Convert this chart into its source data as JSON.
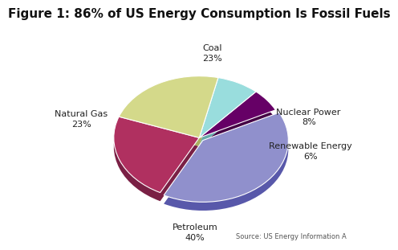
{
  "title": "Figure 1: 86% of US Energy Consumption Is Fossil Fuels",
  "labels": [
    "Natural Gas",
    "Petroleum",
    "Renewable Energy",
    "Nuclear Power",
    "Coal"
  ],
  "values": [
    23,
    40,
    6,
    8,
    23
  ],
  "colors": [
    "#b03060",
    "#9090cc",
    "#660066",
    "#99dddd",
    "#d4d98a"
  ],
  "shadow_colors": [
    "#7a2045",
    "#5858aa",
    "#440044",
    "#66aaaa",
    "#aab060"
  ],
  "explode": [
    0.0,
    0.06,
    0.0,
    0.0,
    0.0
  ],
  "source_text": "Source: US Energy Information A",
  "background_color": "#f0f0f0",
  "title_fontsize": 11,
  "label_fontsize": 8,
  "startangle": 160,
  "pct_labels": [
    "23%",
    "40%",
    "6%",
    "8%",
    "23%"
  ],
  "display_labels": [
    "Natural Gas",
    "Petroleum",
    "Renewable Energy",
    "Nuclear Power",
    "Coal"
  ]
}
